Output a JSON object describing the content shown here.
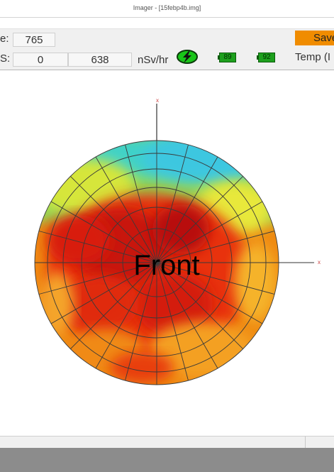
{
  "window": {
    "title": "Imager - [15febp4b.img]"
  },
  "toolbar": {
    "row1": {
      "label": "e:",
      "value": "765"
    },
    "row2": {
      "label": "S:",
      "value1": "0",
      "value2": "638",
      "unit": "nSv/hr"
    },
    "battery1": "89",
    "battery2": "92",
    "save_label": "Save",
    "temp_label": "Temp (I"
  },
  "plot": {
    "label": "Front",
    "axis_top": "x",
    "axis_right": "x"
  },
  "colors": {
    "save_button": "#f08c00",
    "battery": "#1ea01e",
    "power_icon": "#19c519"
  },
  "icons": [
    "power-bolt-icon",
    "battery-icon"
  ]
}
